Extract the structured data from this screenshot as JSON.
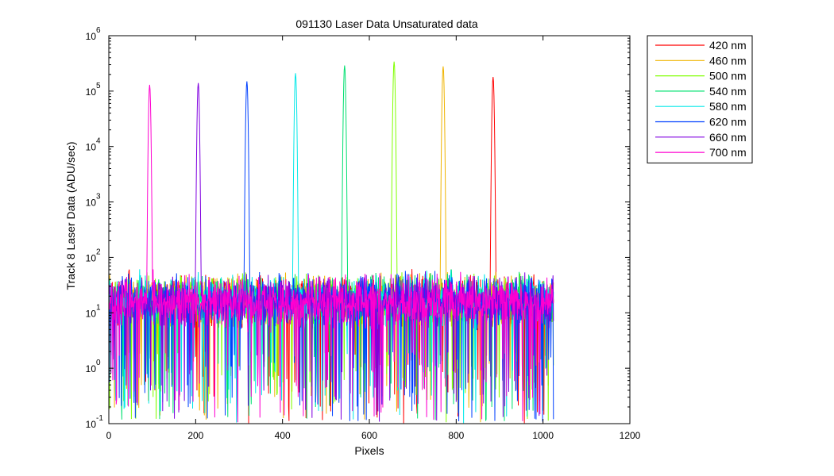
{
  "figure": {
    "background": "#ffffff"
  },
  "chart_data": {
    "type": "line",
    "title": "091130 Laser Data  Unsaturated data",
    "xlabel": "Pixels",
    "ylabel": "Track 8 Laser Data (ADU/sec)",
    "xlim": [
      0,
      1200
    ],
    "ylim": [
      0.1,
      1000000
    ],
    "yscale": "log",
    "grid": false,
    "legend_position": "outside-top-right",
    "x_ticks": [
      0,
      200,
      400,
      600,
      800,
      1000,
      1200
    ],
    "x_tick_labels": [
      "0",
      "200",
      "400",
      "600",
      "800",
      "1000",
      "1200"
    ],
    "y_ticks": [
      0.1,
      1,
      10,
      100,
      1000,
      10000,
      100000,
      1000000
    ],
    "y_tick_labels": [
      {
        "base": "10",
        "exp": "-1"
      },
      {
        "base": "10",
        "exp": "0"
      },
      {
        "base": "10",
        "exp": "1"
      },
      {
        "base": "10",
        "exp": "2"
      },
      {
        "base": "10",
        "exp": "3"
      },
      {
        "base": "10",
        "exp": "4"
      },
      {
        "base": "10",
        "exp": "5"
      },
      {
        "base": "10",
        "exp": "6"
      }
    ],
    "pixel_range": [
      1,
      1024
    ],
    "noise_floor_range": [
      0.1,
      60
    ],
    "series": [
      {
        "name": "420 nm",
        "color": "#ff0000",
        "peak_pixel": 885,
        "peak_value": 180000
      },
      {
        "name": "460 nm",
        "color": "#f0b400",
        "peak_pixel": 770,
        "peak_value": 280000
      },
      {
        "name": "500 nm",
        "color": "#80ff00",
        "peak_pixel": 657,
        "peak_value": 340000
      },
      {
        "name": "540 nm",
        "color": "#00e070",
        "peak_pixel": 543,
        "peak_value": 290000
      },
      {
        "name": "580 nm",
        "color": "#00e8e8",
        "peak_pixel": 430,
        "peak_value": 210000
      },
      {
        "name": "620 nm",
        "color": "#0040ff",
        "peak_pixel": 318,
        "peak_value": 150000
      },
      {
        "name": "660 nm",
        "color": "#8000e0",
        "peak_pixel": 206,
        "peak_value": 140000
      },
      {
        "name": "700 nm",
        "color": "#ff00d0",
        "peak_pixel": 94,
        "peak_value": 130000
      }
    ]
  }
}
